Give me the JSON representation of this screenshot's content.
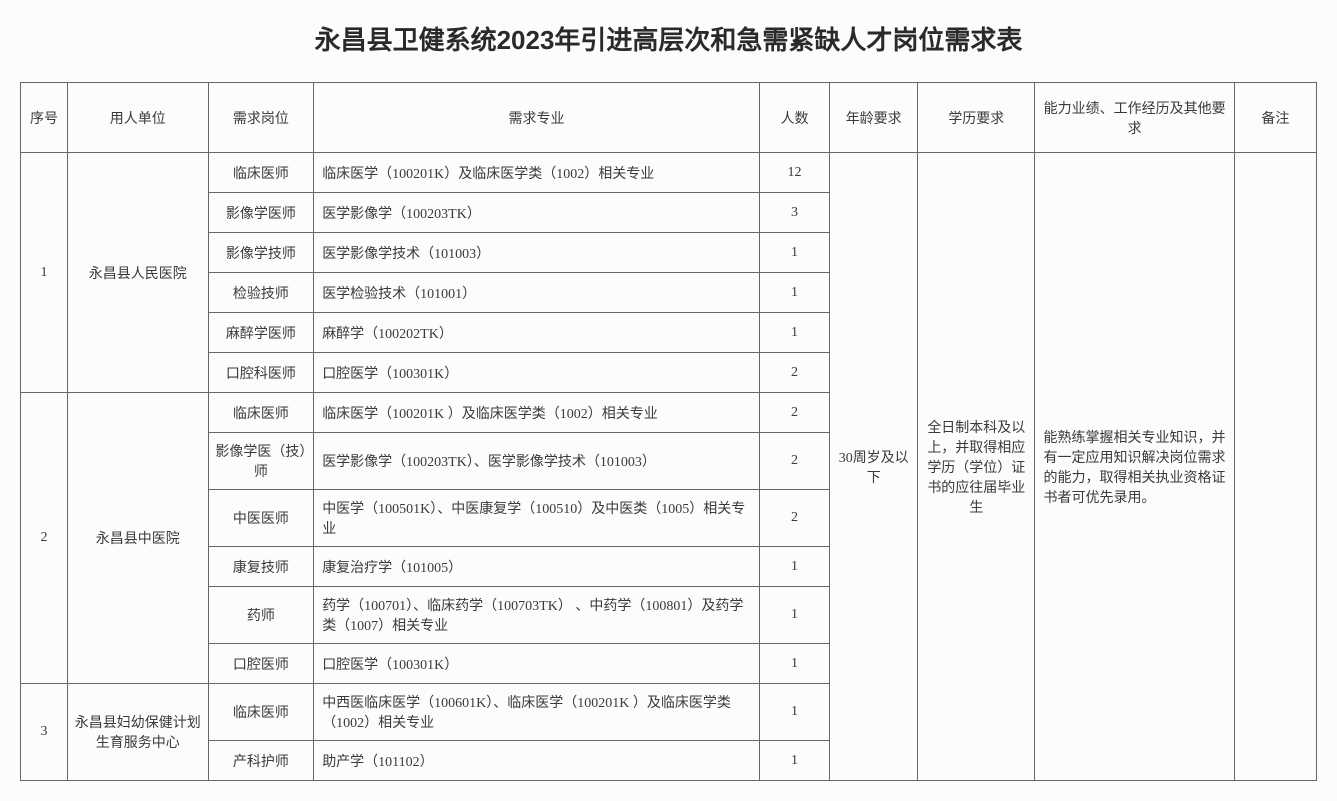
{
  "title": "永昌县卫健系统2023年引进高层次和急需紧缺人才岗位需求表",
  "headers": {
    "seq": "序号",
    "unit": "用人单位",
    "position": "需求岗位",
    "major": "需求专业",
    "count": "人数",
    "age": "年龄要求",
    "edu": "学历要求",
    "ability": "能力业绩、工作经历及其他要求",
    "remark": "备注"
  },
  "units": [
    {
      "seq": "1",
      "name": "永昌县人民医院",
      "positions": [
        {
          "position": "临床医师",
          "major": "临床医学（100201K）及临床医学类（1002）相关专业",
          "count": "12"
        },
        {
          "position": "影像学医师",
          "major": "医学影像学（100203TK）",
          "count": "3"
        },
        {
          "position": "影像学技师",
          "major": "医学影像学技术（101003）",
          "count": "1"
        },
        {
          "position": "检验技师",
          "major": "医学检验技术（101001）",
          "count": "1"
        },
        {
          "position": "麻醉学医师",
          "major": "麻醉学（100202TK）",
          "count": "1"
        },
        {
          "position": "口腔科医师",
          "major": "口腔医学（100301K）",
          "count": "2"
        }
      ]
    },
    {
      "seq": "2",
      "name": "永昌县中医院",
      "positions": [
        {
          "position": "临床医师",
          "major": "临床医学（100201K ）及临床医学类（1002）相关专业",
          "count": "2"
        },
        {
          "position": "影像学医（技）师",
          "major": "医学影像学（100203TK）、医学影像学技术（101003）",
          "count": "2"
        },
        {
          "position": "中医医师",
          "major": "中医学（100501K）、中医康复学（100510）及中医类（1005）相关专业",
          "count": "2"
        },
        {
          "position": "康复技师",
          "major": "康复治疗学（101005）",
          "count": "1"
        },
        {
          "position": "药师",
          "major": "药学（100701）、临床药学（100703TK） 、中药学（100801）及药学类（1007）相关专业",
          "count": "1"
        },
        {
          "position": "口腔医师",
          "major": "口腔医学（100301K）",
          "count": "1"
        }
      ]
    },
    {
      "seq": "3",
      "name": "永昌县妇幼保健计划生育服务中心",
      "positions": [
        {
          "position": "临床医师",
          "major": "中西医临床医学（100601K）、临床医学（100201K ）及临床医学类（1002）相关专业",
          "count": "1"
        },
        {
          "position": "产科护师",
          "major": "助产学（101102）",
          "count": "1"
        }
      ]
    }
  ],
  "shared": {
    "age": "30周岁及以下",
    "edu": "全日制本科及以上，并取得相应学历（学位）证书的应往届毕业生",
    "ability": "能熟练掌握相关专业知识，并有一定应用知识解决岗位需求的能力，取得相关执业资格证书者可优先录用。"
  }
}
